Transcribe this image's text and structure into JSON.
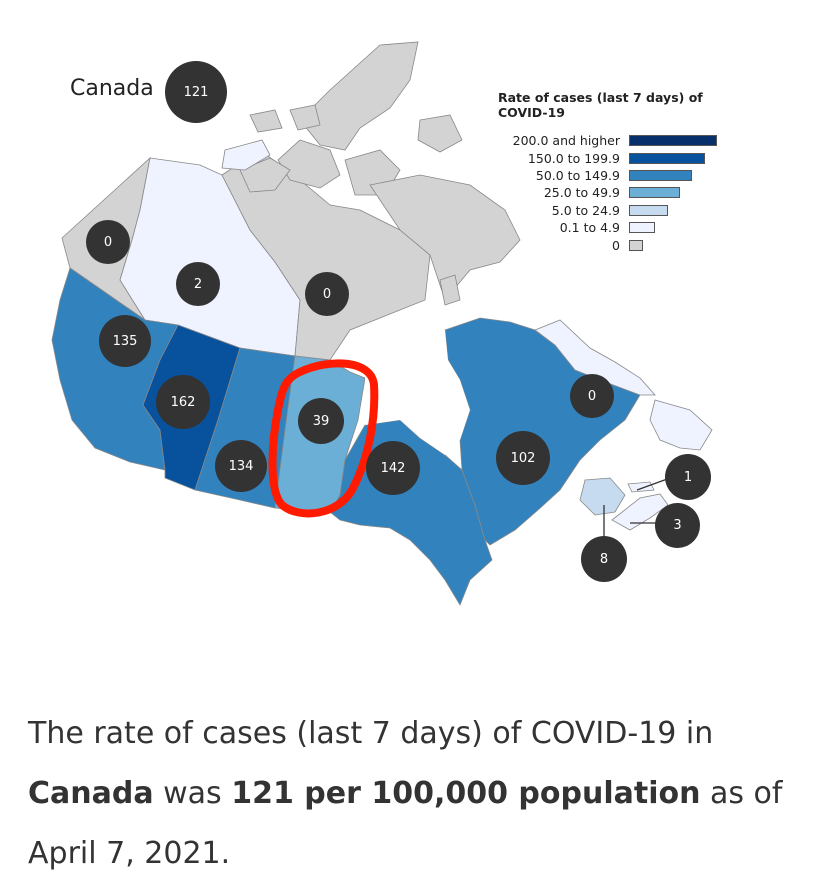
{
  "map": {
    "country_label": "Canada",
    "country_value": "121",
    "colors": {
      "c200": "#08306b",
      "c150": "#08519c",
      "c50": "#3182bd",
      "c25": "#6baed6",
      "c5": "#c6dbef",
      "c01": "#eff3ff",
      "c0": "#d3d3d3",
      "highlight_circle": "#ff1a00",
      "bubble": "#333333"
    },
    "regions": [
      {
        "name": "British Columbia",
        "value": "135",
        "color_class": "50.0 to 149.9"
      },
      {
        "name": "Alberta",
        "value": "162",
        "color_class": "150.0 to 199.9"
      },
      {
        "name": "Saskatchewan",
        "value": "134",
        "color_class": "50.0 to 149.9"
      },
      {
        "name": "Manitoba",
        "value": "39",
        "color_class": "25.0 to 49.9"
      },
      {
        "name": "Ontario",
        "value": "142",
        "color_class": "50.0 to 149.9"
      },
      {
        "name": "Quebec",
        "value": "102",
        "color_class": "50.0 to 149.9"
      },
      {
        "name": "Newfoundland and Labrador",
        "value": "0",
        "color_class": "0"
      },
      {
        "name": "New Brunswick",
        "value": "8",
        "color_class": "5.0 to 24.9"
      },
      {
        "name": "Prince Edward Island",
        "value": "1",
        "color_class": "0.1 to 4.9"
      },
      {
        "name": "Nova Scotia",
        "value": "3",
        "color_class": "0.1 to 4.9"
      },
      {
        "name": "Yukon",
        "value": "0",
        "color_class": "0"
      },
      {
        "name": "Northwest Territories",
        "value": "2",
        "color_class": "0.1 to 4.9"
      },
      {
        "name": "Nunavut",
        "value": "0",
        "color_class": "0"
      }
    ]
  },
  "legend": {
    "title": "Rate of cases (last 7 days) of COVID-19",
    "items": [
      {
        "label": "200.0 and higher",
        "color": "#08306b",
        "bar_fraction": 1.0
      },
      {
        "label": "150.0 to 199.9",
        "color": "#08519c",
        "bar_fraction": 0.86
      },
      {
        "label": "50.0 to 149.9",
        "color": "#3182bd",
        "bar_fraction": 0.72
      },
      {
        "label": "25.0 to 49.9",
        "color": "#6baed6",
        "bar_fraction": 0.58
      },
      {
        "label": "5.0 to 24.9",
        "color": "#c6dbef",
        "bar_fraction": 0.44
      },
      {
        "label": "0.1 to 4.9",
        "color": "#eff3ff",
        "bar_fraction": 0.3
      },
      {
        "label": "0",
        "color": "#d3d3d3",
        "bar_fraction": 0.16
      }
    ]
  },
  "caption": {
    "part1": "The rate of cases (last 7 days) of COVID-19 in",
    "country": "Canada",
    "part2": " was ",
    "rate": "121 per 100,000 population",
    "part3": " as of",
    "date": "April 7, 2021."
  }
}
